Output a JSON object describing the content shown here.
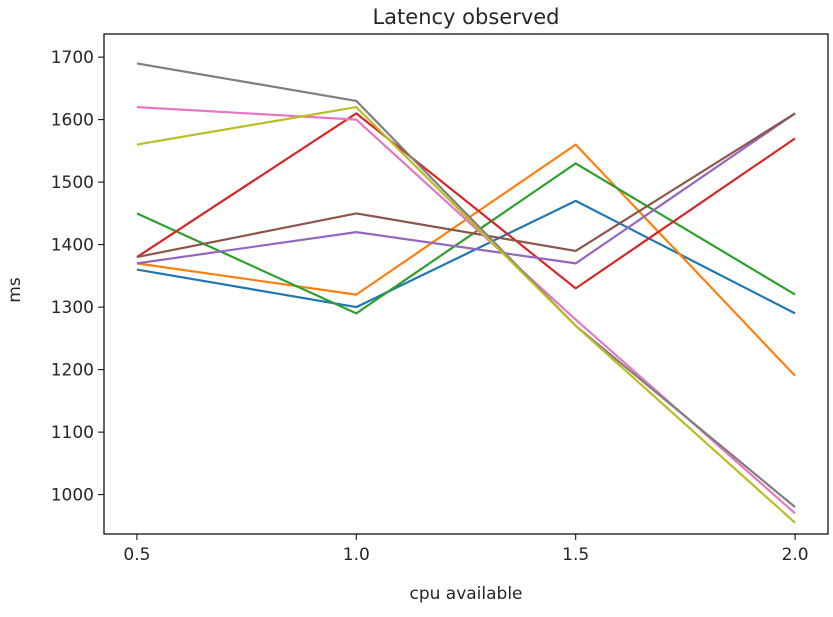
{
  "chart_data": {
    "type": "line",
    "title": "Latency observed",
    "xlabel": "cpu available",
    "ylabel": "ms",
    "x": [
      0.5,
      1.0,
      1.5,
      2.0
    ],
    "x_tick_labels": [
      "0.5",
      "1.0",
      "1.5",
      "2.0"
    ],
    "y_ticks": [
      1000,
      1100,
      1200,
      1300,
      1400,
      1500,
      1600,
      1700
    ],
    "y_tick_labels": [
      "1000",
      "1100",
      "1200",
      "1300",
      "1400",
      "1500",
      "1600",
      "1700"
    ],
    "xlim": [
      0.425,
      2.075
    ],
    "ylim": [
      937,
      1737
    ],
    "grid": false,
    "series": [
      {
        "color": "#1f77b4",
        "values": [
          1360,
          1300,
          1470,
          1290
        ]
      },
      {
        "color": "#ff7f0e",
        "values": [
          1370,
          1320,
          1560,
          1190
        ]
      },
      {
        "color": "#2ca02c",
        "values": [
          1450,
          1290,
          1530,
          1320
        ]
      },
      {
        "color": "#d62728",
        "values": [
          1380,
          1610,
          1330,
          1570
        ]
      },
      {
        "color": "#9467bd",
        "values": [
          1370,
          1420,
          1370,
          1610
        ]
      },
      {
        "color": "#8c564b",
        "values": [
          1380,
          1450,
          1390,
          1610
        ]
      },
      {
        "color": "#e377c2",
        "values": [
          1620,
          1600,
          1280,
          970
        ]
      },
      {
        "color": "#7f7f7f",
        "values": [
          1690,
          1630,
          1270,
          980
        ]
      },
      {
        "color": "#bcbd22",
        "values": [
          1560,
          1620,
          1270,
          955
        ]
      }
    ]
  }
}
